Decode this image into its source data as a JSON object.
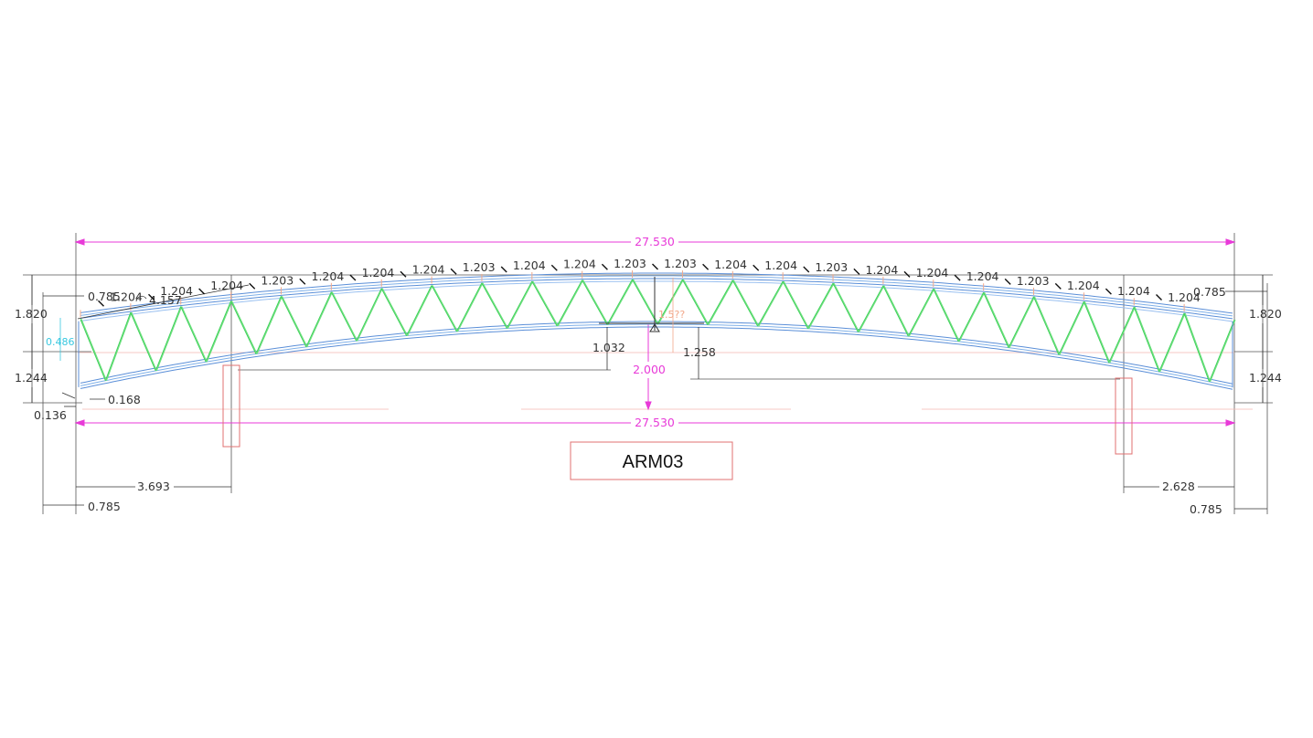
{
  "drawing": {
    "title_block": "ARM03",
    "overall_span_top": "27.530",
    "overall_span_bottom": "27.530",
    "left": {
      "height_upper": "1.820",
      "height_lower": "1.244",
      "offset_top": "0.785",
      "offset_bottom": "0.785",
      "arc_length": "4.157",
      "truss_depth": "0.486",
      "bearing_small": "0.168",
      "bearing_offset": "0.136",
      "support_distance": "3.693"
    },
    "right": {
      "height_upper": "1.820",
      "height_lower": "1.244",
      "offset_top": "0.785",
      "offset_bottom": "0.785",
      "support_distance": "2.628"
    },
    "center": {
      "rise_total": "2.000",
      "rise_left": "1.032",
      "rise_right": "1.258",
      "crown_depth": "1.5??"
    },
    "panel_labels": [
      "1.204",
      "1.204",
      "1.204",
      "1.203",
      "1.204",
      "1.204",
      "1.204",
      "1.203",
      "1.204",
      "1.204",
      "1.203",
      "1.203",
      "1.204",
      "1.204",
      "1.203",
      "1.204",
      "1.204",
      "1.204",
      "1.203",
      "1.204",
      "1.204",
      "1.204"
    ],
    "colors": {
      "magenta": "#e83ad8",
      "green": "#3ed15a",
      "blue": "#5b8fd8",
      "red": "#e07070",
      "dark": "#333333"
    }
  }
}
